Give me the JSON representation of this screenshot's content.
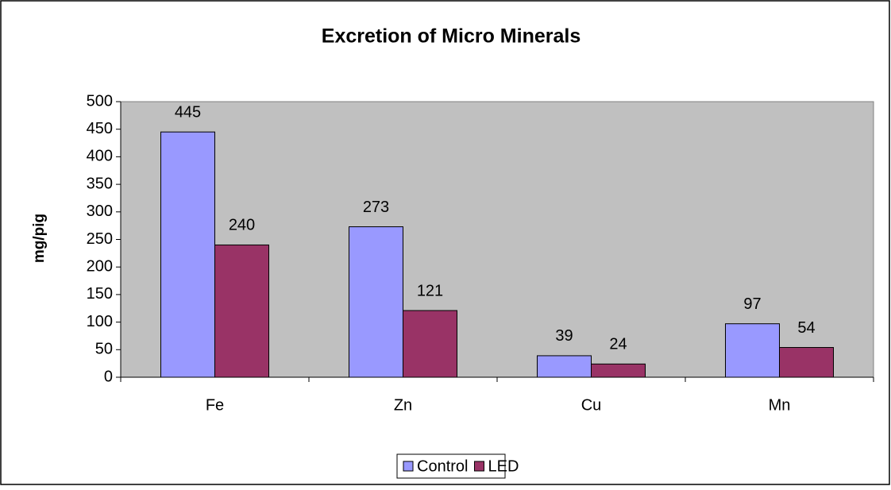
{
  "chart_data": {
    "type": "bar",
    "title": "Excretion of Micro Minerals",
    "y_label": "mg/pig",
    "categories": [
      "Fe",
      "Zn",
      "Cu",
      "Mn"
    ],
    "series": [
      {
        "name": "Control",
        "color": "#9999ff",
        "values": [
          445,
          273,
          39,
          97
        ]
      },
      {
        "name": "LED",
        "color": "#993366",
        "values": [
          240,
          121,
          24,
          54
        ]
      }
    ],
    "ylim": [
      0,
      500
    ],
    "yticks": [
      0,
      50,
      100,
      150,
      200,
      250,
      300,
      350,
      400,
      450,
      500
    ],
    "plot_background": "#c0c0c0",
    "legend": "bottom",
    "data_labels": true
  }
}
